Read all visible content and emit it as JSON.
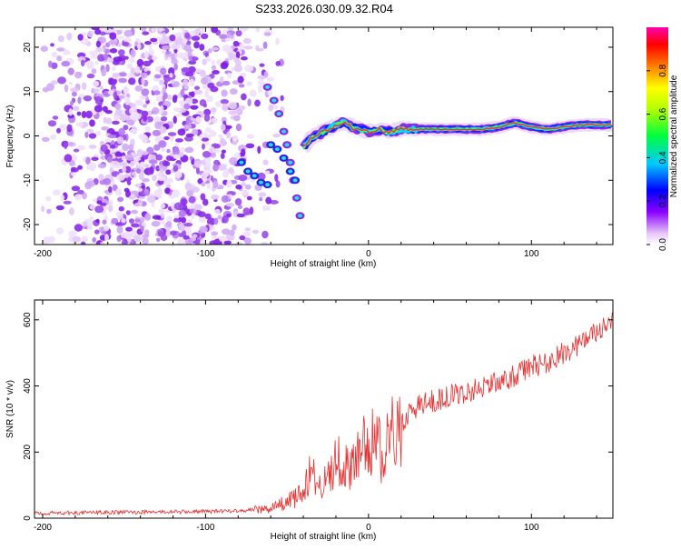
{
  "title": "S233.2026.030.09.32.R04",
  "chart_data": [
    {
      "type": "heatmap",
      "xlabel": "Height of straight line (km)",
      "ylabel": "Frequency (Hz)",
      "xlim": [
        -205,
        150
      ],
      "ylim": [
        -24.5,
        24.5
      ],
      "xticks": [
        -200,
        -100,
        0,
        100
      ],
      "yticks": [
        -20,
        -10,
        0,
        10,
        20
      ],
      "ridge": {
        "x": [
          -40,
          -35,
          -30,
          -25,
          -20,
          -15,
          -10,
          -5,
          0,
          5,
          10,
          15,
          20,
          30,
          50,
          70,
          80,
          90,
          100,
          110,
          120,
          130,
          140,
          150
        ],
        "y": [
          -2.5,
          -0.5,
          0.5,
          1.5,
          2.5,
          3.0,
          2.0,
          1.5,
          1.0,
          1.5,
          1.0,
          1.0,
          1.5,
          1.5,
          1.5,
          1.5,
          2.0,
          3.0,
          2.0,
          1.5,
          2.0,
          2.5,
          2.5,
          2.5
        ]
      },
      "colorbar": {
        "label": "Normalized spectral amplitude",
        "range": [
          0,
          1
        ],
        "ticks": [
          "0.0",
          "0.2",
          "0.4",
          "0.6",
          "0.8"
        ]
      }
    },
    {
      "type": "line",
      "xlabel": "Height of straight line (km)",
      "ylabel": "SNR (10 * v/v)",
      "xlim": [
        -205,
        150
      ],
      "ylim": [
        0,
        660
      ],
      "xticks": [
        -200,
        -100,
        0,
        100
      ],
      "yticks": [
        0,
        200,
        400,
        600
      ],
      "series": [
        {
          "name": "SNR",
          "color": "#e83030",
          "x": [
            -205,
            -150,
            -100,
            -70,
            -60,
            -50,
            -45,
            -40,
            -35,
            -30,
            -25,
            -20,
            -15,
            -10,
            -5,
            0,
            5,
            10,
            15,
            20,
            30,
            40,
            50,
            60,
            70,
            80,
            90,
            100,
            110,
            120,
            130,
            140,
            150
          ],
          "y": [
            15,
            18,
            20,
            25,
            30,
            50,
            60,
            80,
            150,
            90,
            120,
            180,
            170,
            140,
            210,
            240,
            220,
            200,
            250,
            290,
            340,
            355,
            370,
            380,
            400,
            410,
            430,
            460,
            470,
            500,
            530,
            560,
            590
          ]
        }
      ]
    }
  ]
}
